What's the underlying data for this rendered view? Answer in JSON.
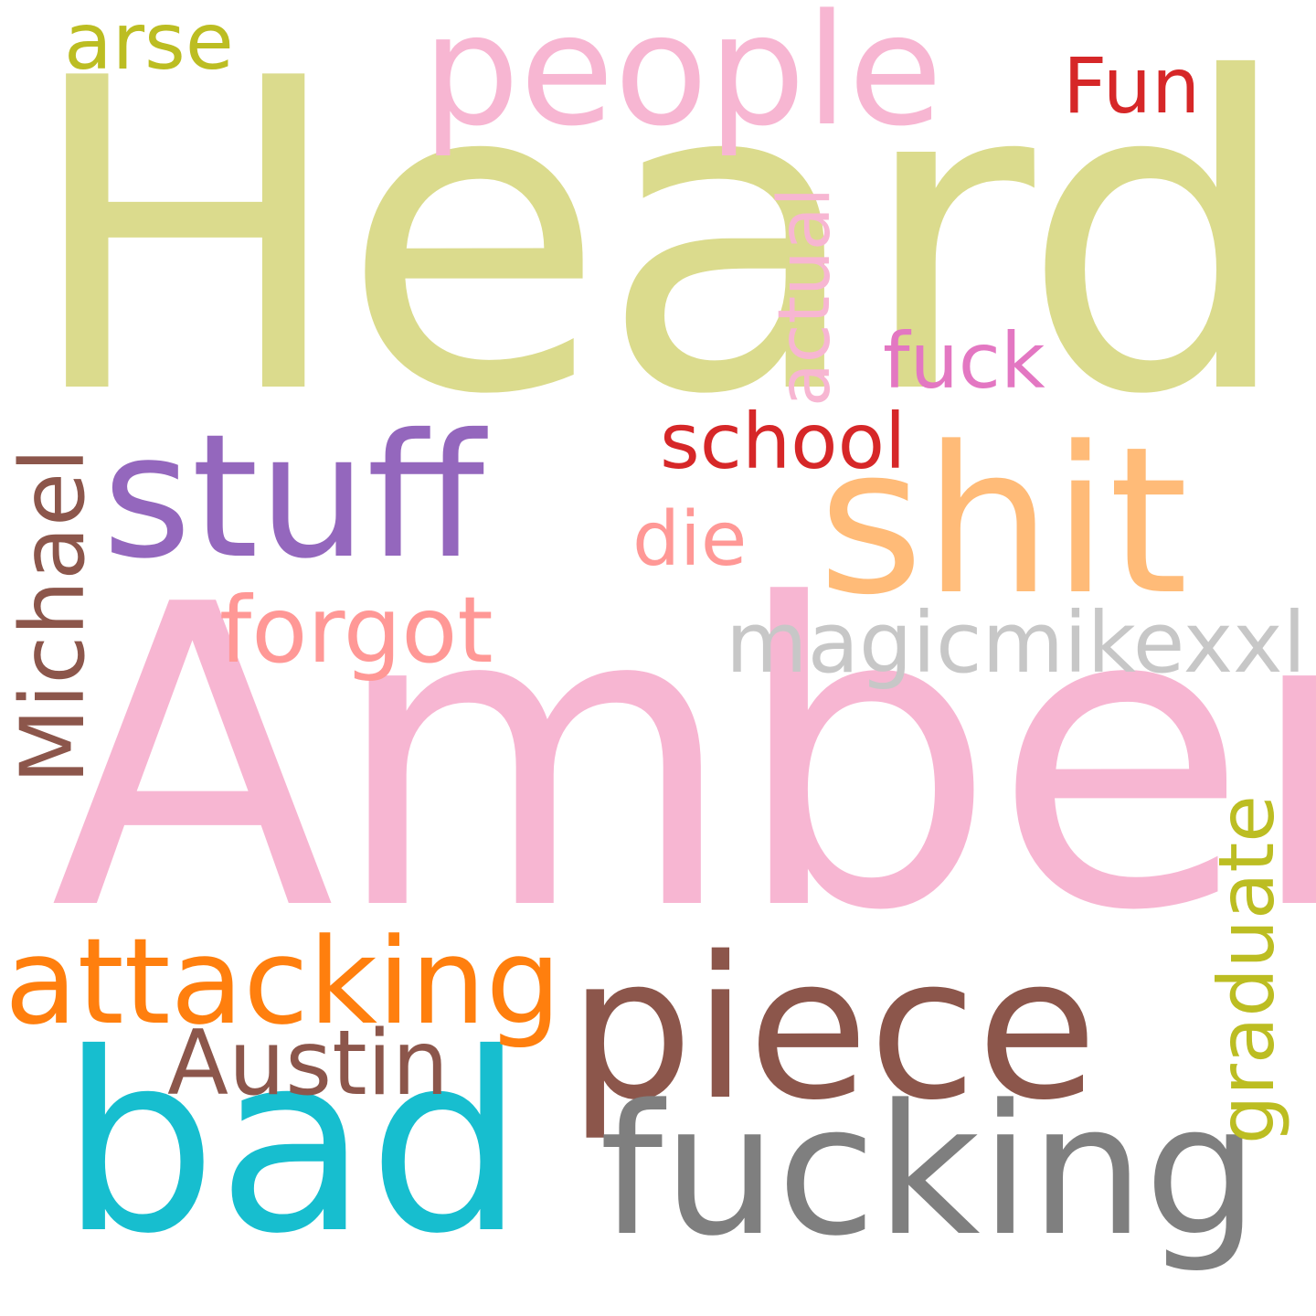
{
  "words": [
    {
      "key": "heard",
      "text": "Heard",
      "color": "#dbdb8d"
    },
    {
      "key": "amber",
      "text": "Amber",
      "color": "#f7b6d2"
    },
    {
      "key": "piece",
      "text": "piece",
      "color": "#8c564b"
    },
    {
      "key": "bad",
      "text": "bad",
      "color": "#17becf"
    },
    {
      "key": "fucking",
      "text": "fucking",
      "color": "#7f7f7f"
    },
    {
      "key": "shit",
      "text": "shit",
      "color": "#ffbb78"
    },
    {
      "key": "stuff",
      "text": "stuff",
      "color": "#9467bd"
    },
    {
      "key": "people",
      "text": "people",
      "color": "#f7b6d2"
    },
    {
      "key": "attacking",
      "text": "attacking",
      "color": "#ff7f0e"
    },
    {
      "key": "magicmikexxl",
      "text": "magicmikexxl",
      "color": "#c7c7c7"
    },
    {
      "key": "michael",
      "text": "Michael",
      "color": "#8c564b"
    },
    {
      "key": "forgot",
      "text": "forgot",
      "color": "#ff9896"
    },
    {
      "key": "austin",
      "text": "Austin",
      "color": "#8c564b"
    },
    {
      "key": "graduate",
      "text": "graduate",
      "color": "#bcbd22"
    },
    {
      "key": "school",
      "text": "school",
      "color": "#d62728"
    },
    {
      "key": "actual",
      "text": "actual",
      "color": "#f7b6d2"
    },
    {
      "key": "fuck",
      "text": "fuck",
      "color": "#e377c2"
    },
    {
      "key": "die",
      "text": "die",
      "color": "#ff9896"
    },
    {
      "key": "arse",
      "text": "arse",
      "color": "#bcbd22"
    },
    {
      "key": "fun",
      "text": "Fun",
      "color": "#d62728"
    }
  ]
}
